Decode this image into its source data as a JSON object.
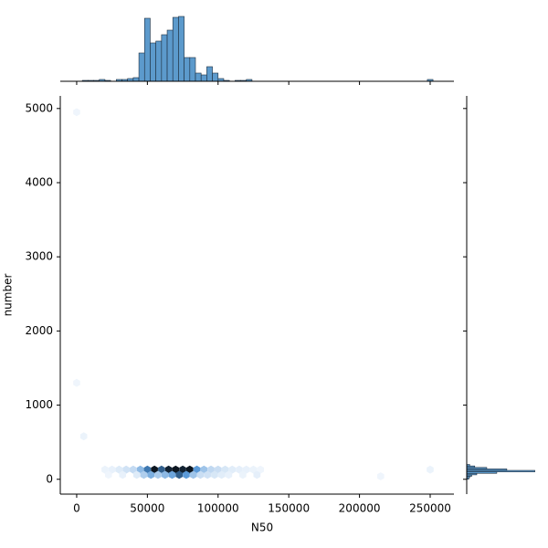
{
  "chart_data": [
    {
      "type": "hexbin",
      "x_label": "N50",
      "y_label": "number",
      "x": [
        20000,
        25000,
        30000,
        35000,
        40000,
        45000,
        50000,
        55000,
        60000,
        65000,
        70000,
        75000,
        80000,
        85000,
        90000,
        95000,
        100000,
        105000,
        110000,
        115000,
        120000,
        125000,
        130000,
        22500,
        32500,
        42500,
        47500,
        52500,
        57500,
        62500,
        67500,
        72500,
        77500,
        82500,
        87500,
        92500,
        97500,
        102500,
        107500,
        117500,
        127500,
        5000,
        0,
        0,
        250000,
        215000
      ],
      "y": [
        130,
        130,
        130,
        130,
        130,
        130,
        130,
        130,
        130,
        130,
        130,
        130,
        130,
        130,
        130,
        130,
        130,
        130,
        130,
        130,
        130,
        130,
        130,
        60,
        60,
        60,
        60,
        60,
        60,
        60,
        60,
        60,
        60,
        60,
        60,
        60,
        60,
        60,
        60,
        60,
        60,
        580,
        1300,
        4950,
        130,
        40
      ],
      "values": [
        2,
        3,
        6,
        10,
        14,
        30,
        60,
        100,
        70,
        95,
        100,
        95,
        100,
        45,
        25,
        15,
        12,
        8,
        5,
        4,
        3,
        2,
        1,
        1,
        3,
        6,
        20,
        35,
        22,
        30,
        40,
        70,
        45,
        25,
        12,
        10,
        8,
        5,
        3,
        2,
        4,
        2,
        1,
        1,
        2,
        1
      ],
      "cmap": [
        "#f2f7fd",
        "#4a90d4",
        "#0c1620"
      ],
      "xlim": [
        -11600,
        266800
      ],
      "ylim": [
        -200,
        5170
      ],
      "xticks": [
        0,
        50000,
        100000,
        150000,
        200000,
        250000
      ],
      "yticks": [
        0,
        1000,
        2000,
        3000,
        4000,
        5000
      ]
    },
    {
      "type": "histogram",
      "orientation": "vertical",
      "color": "#4a8fc6",
      "bins": [
        0,
        4000,
        8000,
        12000,
        16000,
        20000,
        24000,
        28000,
        32000,
        36000,
        40000,
        44000,
        48000,
        52000,
        56000,
        60000,
        64000,
        68000,
        72000,
        76000,
        80000,
        84000,
        88000,
        92000,
        96000,
        100000,
        104000,
        108000,
        112000,
        116000,
        120000,
        124000,
        128000,
        132000,
        136000,
        140000,
        144000,
        148000,
        152000,
        156000,
        160000,
        164000,
        168000,
        172000,
        176000,
        180000,
        184000,
        188000,
        192000,
        196000,
        200000,
        204000,
        208000,
        212000,
        216000,
        220000,
        224000,
        228000,
        232000,
        236000,
        240000,
        244000,
        248000,
        252000,
        256000
      ],
      "values": [
        0,
        1,
        1,
        1,
        2,
        1,
        0,
        2,
        2,
        3,
        4,
        31,
        69,
        42,
        44,
        51,
        56,
        70,
        71,
        26,
        26,
        9,
        7,
        16,
        9,
        3,
        1,
        0,
        1,
        1,
        2,
        0,
        0,
        0,
        0,
        0,
        0,
        0,
        0,
        0,
        0,
        0,
        0,
        0,
        0,
        0,
        0,
        0,
        0,
        0,
        0,
        0,
        0,
        0,
        0,
        0,
        0,
        0,
        0,
        0,
        0,
        0,
        2,
        0
      ],
      "xlim": [
        -11600,
        266800
      ],
      "ylim": [
        0,
        73
      ]
    },
    {
      "type": "histogram",
      "orientation": "horizontal",
      "color": "#4a8fc6",
      "bins": [
        0,
        20,
        40,
        60,
        80,
        100,
        120,
        140,
        160,
        180,
        200
      ],
      "values": [
        2,
        3,
        5,
        10,
        30,
        68,
        40,
        20,
        8,
        3
      ],
      "xlim": [
        0,
        72
      ],
      "ylim": [
        -200,
        5170
      ]
    }
  ]
}
